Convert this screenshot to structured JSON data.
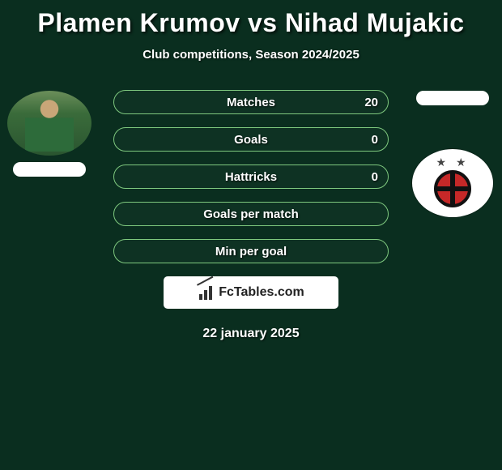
{
  "colors": {
    "background": "#0a2e1f",
    "text": "#ffffff",
    "pill_border": "#7fc97f",
    "box_bg": "#ffffff",
    "badge_red": "#c62828",
    "badge_black": "#111111"
  },
  "title": {
    "player1": "Plamen Krumov",
    "vs": "vs",
    "player2": "Nihad Mujakic",
    "full": "Plamen Krumov vs Nihad Mujakic",
    "fontsize": 32
  },
  "subtitle": {
    "text": "Club competitions, Season 2024/2025",
    "fontsize": 15
  },
  "stats": {
    "label_fontsize": 15,
    "rows": [
      {
        "label": "Matches",
        "right_value": "20"
      },
      {
        "label": "Goals",
        "right_value": "0"
      },
      {
        "label": "Hattricks",
        "right_value": "0"
      },
      {
        "label": "Goals per match",
        "right_value": ""
      },
      {
        "label": "Min per goal",
        "right_value": ""
      }
    ]
  },
  "players": {
    "left": {
      "name": "Plamen Krumov",
      "photo_desc": "player-headshot-green-kit",
      "country_pill": true
    },
    "right": {
      "name": "Nihad Mujakic",
      "country_pill": true,
      "club_badge": "partizan"
    }
  },
  "brand": {
    "label": "FcTables.com"
  },
  "date": {
    "text": "22 january 2025",
    "fontsize": 16
  }
}
